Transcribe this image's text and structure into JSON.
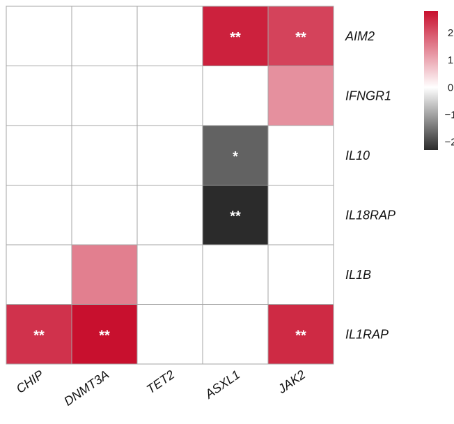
{
  "chart_data": {
    "type": "heatmap",
    "rows": [
      "AIM2",
      "IFNGR1",
      "IL10",
      "IL18RAP",
      "IL1B",
      "IL1RAP"
    ],
    "columns": [
      "CHIP",
      "DNMT3A",
      "TET2",
      "ASXL1",
      "JAK2"
    ],
    "values": [
      [
        0,
        0,
        0,
        2.6,
        2.2
      ],
      [
        0,
        0,
        0,
        0,
        1.3
      ],
      [
        0,
        0,
        0,
        -1.7,
        0
      ],
      [
        0,
        0,
        0,
        -2.3,
        0
      ],
      [
        0,
        1.5,
        0,
        0,
        0
      ],
      [
        2.4,
        2.8,
        0,
        0,
        2.5
      ]
    ],
    "annotations": [
      [
        "",
        "",
        "",
        "**",
        "**"
      ],
      [
        "",
        "",
        "",
        "",
        ""
      ],
      [
        "",
        "",
        "",
        "*",
        ""
      ],
      [
        "",
        "",
        "",
        "**",
        ""
      ],
      [
        "",
        "",
        "",
        "",
        ""
      ],
      [
        "**",
        "**",
        "",
        "",
        "**"
      ]
    ],
    "colorbar": {
      "ticks": [
        "2",
        "1",
        "0",
        "−1",
        "−2"
      ],
      "tick_values": [
        2,
        1,
        0,
        -1,
        -2
      ],
      "range": [
        -2.3,
        2.8
      ],
      "colors": {
        "high": "#c8102e",
        "mid": "#ffffff",
        "low": "#2b2b2b"
      }
    },
    "grid_color": "#a6a6a6"
  }
}
